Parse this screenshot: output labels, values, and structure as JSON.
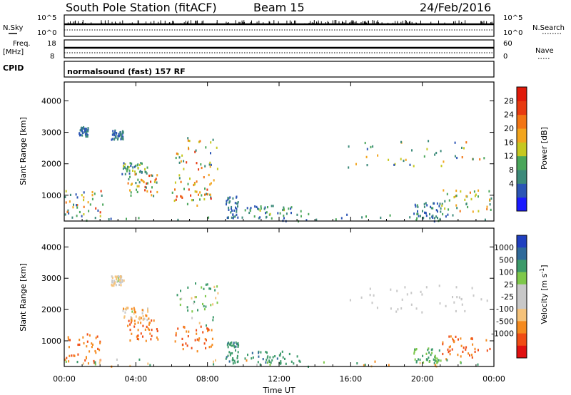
{
  "header": {
    "station": "South Pole Station (fitACF)",
    "beam": "Beam 15",
    "date": "24/Feb/2016"
  },
  "status_panels": {
    "nsky_label": "N.Sky",
    "nsearch_label": "N.Search",
    "noise_ticks": [
      "10^5",
      "10^0"
    ],
    "freq_label_1": "Freq.",
    "freq_label_2": "[MHz]",
    "freq_ticks": [
      "18",
      "8"
    ],
    "nave_label": "Nave",
    "nave_ticks": [
      "60",
      "0"
    ],
    "cpid_label": "CPID",
    "cpid_value": "normalsound (fast) 157 RF"
  },
  "time_ticks": [
    "00:00",
    "04:00",
    "08:00",
    "12:00",
    "16:00",
    "20:00",
    "00:00"
  ],
  "xlabel": "Time UT",
  "colors": {
    "power": [
      "#1a1aff",
      "#2b55b5",
      "#3c8a7a",
      "#4aa65a",
      "#c6c820",
      "#f2a51e",
      "#f27514",
      "#e83a10",
      "#e01a0a"
    ],
    "velocity": [
      "#e01010",
      "#f04c14",
      "#f58a1e",
      "#f5c27a",
      "#c8c8c8",
      "#c8c8c8",
      "#7ec84a",
      "#3c9a6a",
      "#2f6a9a",
      "#2040c0"
    ]
  },
  "chart_data": [
    {
      "type": "heatmap",
      "ylabel": "Slant Range [km]",
      "ylim": [
        180,
        4600
      ],
      "y_ticks": [
        "4000",
        "3000",
        "2000",
        "1000"
      ],
      "y_tick_values": [
        4000,
        3000,
        2000,
        1000
      ],
      "xlim_hours": [
        0,
        24
      ],
      "colorbar": {
        "label": "Power [dB]",
        "ticks": [
          "28",
          "24",
          "20",
          "16",
          "12",
          "8",
          "4"
        ],
        "range": [
          0,
          32
        ]
      },
      "regions": [
        {
          "t": [
            0.0,
            2.2
          ],
          "r": [
            300,
            1200
          ],
          "v": [
            4,
            26
          ]
        },
        {
          "t": [
            0.8,
            1.3
          ],
          "r": [
            2900,
            3200
          ],
          "v": [
            4,
            10
          ]
        },
        {
          "t": [
            2.6,
            3.3
          ],
          "r": [
            2800,
            3100
          ],
          "v": [
            4,
            10
          ]
        },
        {
          "t": [
            3.2,
            4.7
          ],
          "r": [
            1700,
            2100
          ],
          "v": [
            6,
            18
          ]
        },
        {
          "t": [
            3.5,
            5.2
          ],
          "r": [
            1000,
            1700
          ],
          "v": [
            8,
            28
          ]
        },
        {
          "t": [
            6.0,
            8.3
          ],
          "r": [
            700,
            1500
          ],
          "v": [
            10,
            30
          ]
        },
        {
          "t": [
            6.2,
            8.6
          ],
          "r": [
            1500,
            2900
          ],
          "v": [
            6,
            26
          ]
        },
        {
          "t": [
            9.0,
            9.7
          ],
          "r": [
            300,
            1000
          ],
          "v": [
            4,
            10
          ]
        },
        {
          "t": [
            10.0,
            13.2
          ],
          "r": [
            300,
            700
          ],
          "v": [
            4,
            16
          ]
        },
        {
          "t": [
            15.8,
            23.8
          ],
          "r": [
            1900,
            2800
          ],
          "v": [
            4,
            22
          ]
        },
        {
          "t": [
            19.5,
            21.0
          ],
          "r": [
            300,
            800
          ],
          "v": [
            4,
            12
          ]
        },
        {
          "t": [
            21.0,
            23.9
          ],
          "r": [
            500,
            1200
          ],
          "v": [
            8,
            24
          ]
        },
        {
          "t": [
            0.0,
            24.0
          ],
          "r": [
            200,
            450
          ],
          "v": [
            4,
            14
          ]
        }
      ]
    },
    {
      "type": "heatmap",
      "ylabel": "Slant Range [km]",
      "ylim": [
        180,
        4600
      ],
      "y_ticks": [
        "4000",
        "3000",
        "2000",
        "1000"
      ],
      "y_tick_values": [
        4000,
        3000,
        2000,
        1000
      ],
      "xlim_hours": [
        0,
        24
      ],
      "colorbar": {
        "label": "Velocity [m s^-1]",
        "ticks": [
          "1000",
          "500",
          "100",
          "25",
          "-25",
          "-100",
          "-500",
          "-1000"
        ]
      },
      "regions": [
        {
          "t": [
            0.0,
            2.2
          ],
          "r": [
            300,
            1300
          ],
          "v": [
            -700,
            -150
          ]
        },
        {
          "t": [
            2.6,
            3.3
          ],
          "r": [
            2800,
            3100
          ],
          "v": [
            -100,
            30
          ]
        },
        {
          "t": [
            3.2,
            4.7
          ],
          "r": [
            1700,
            2100
          ],
          "v": [
            -200,
            30
          ]
        },
        {
          "t": [
            3.5,
            5.2
          ],
          "r": [
            1000,
            1700
          ],
          "v": [
            -800,
            -200
          ]
        },
        {
          "t": [
            6.0,
            8.3
          ],
          "r": [
            700,
            1500
          ],
          "v": [
            -900,
            -150
          ]
        },
        {
          "t": [
            6.2,
            8.6
          ],
          "r": [
            1500,
            2900
          ],
          "v": [
            -100,
            400
          ]
        },
        {
          "t": [
            9.0,
            9.7
          ],
          "r": [
            300,
            1000
          ],
          "v": [
            150,
            600
          ]
        },
        {
          "t": [
            10.0,
            13.2
          ],
          "r": [
            300,
            700
          ],
          "v": [
            100,
            600
          ]
        },
        {
          "t": [
            15.8,
            23.8
          ],
          "r": [
            1900,
            2800
          ],
          "v": [
            -25,
            25
          ]
        },
        {
          "t": [
            19.5,
            21.0
          ],
          "r": [
            300,
            800
          ],
          "v": [
            50,
            200
          ]
        },
        {
          "t": [
            21.0,
            23.9
          ],
          "r": [
            500,
            1200
          ],
          "v": [
            -900,
            -200
          ]
        },
        {
          "t": [
            0.0,
            24.0
          ],
          "r": [
            200,
            450
          ],
          "v": [
            -200,
            200
          ]
        }
      ]
    }
  ]
}
